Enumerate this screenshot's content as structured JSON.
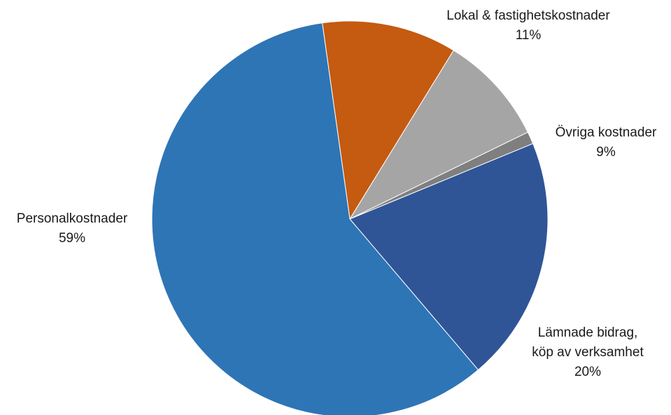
{
  "chart_data": {
    "type": "pie",
    "start_angle_deg": -8,
    "direction": "clockwise",
    "slices": [
      {
        "label_lines": [
          "Lokal & fastighetskostnader",
          "11%"
        ],
        "value": 11,
        "color": "#C55A11"
      },
      {
        "label_lines": [
          "Övriga kostnader",
          "9%"
        ],
        "value": 9,
        "color": "#A5A5A5"
      },
      {
        "label_lines": [],
        "value": 1,
        "color": "#7F7F7F"
      },
      {
        "label_lines": [
          "Lämnade bidrag,",
          "köp av verksamhet",
          "20%"
        ],
        "value": 20,
        "color": "#2F5597"
      },
      {
        "label_lines": [
          "Personalkostnader",
          "59%"
        ],
        "value": 59,
        "color": "#2E75B6"
      }
    ]
  }
}
